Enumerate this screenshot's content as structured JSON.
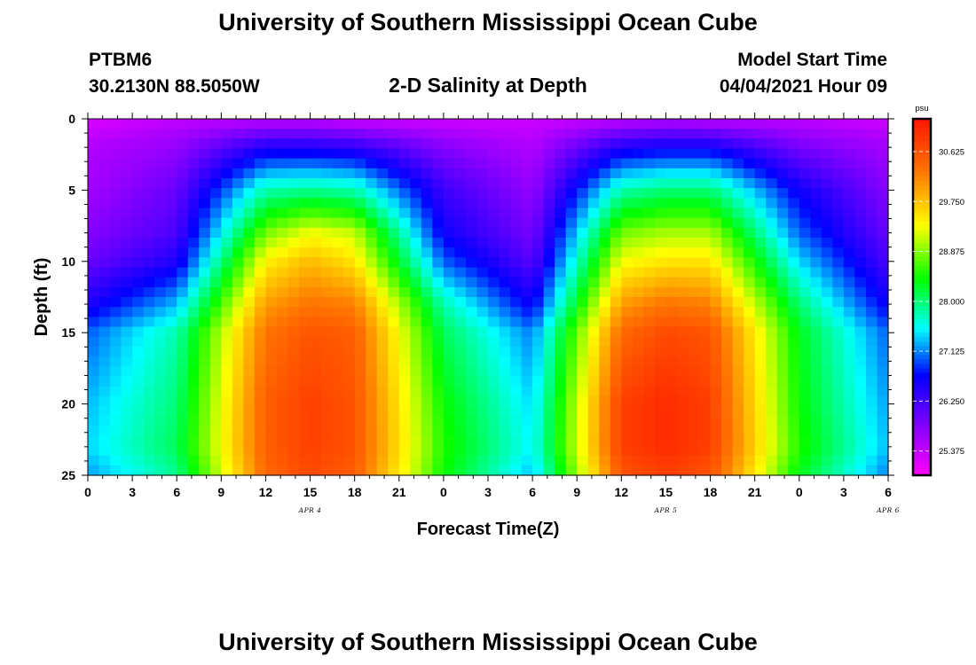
{
  "header": {
    "title_top": "University of Southern Mississippi Ocean Cube",
    "title_bottom": "University of Southern Mississippi Ocean Cube",
    "station_id": "PTBM6",
    "station_coords": "30.2130N  88.5050W",
    "plot_title": "2-D Salinity at Depth",
    "model_start_label": "Model Start Time",
    "model_start_value": "04/04/2021 Hour 09"
  },
  "chart_data": {
    "type": "heatmap",
    "title": "2-D Salinity at Depth",
    "xlabel": "Forecast Time(Z)",
    "ylabel": "Depth (ft)",
    "x_tick_labels": [
      "0",
      "3",
      "6",
      "9",
      "12",
      "15",
      "18",
      "21",
      "0",
      "3",
      "6",
      "9",
      "12",
      "15",
      "18",
      "21",
      "0",
      "3",
      "6"
    ],
    "day_labels": [
      {
        "label": "APR 4",
        "hour": 15
      },
      {
        "label": "APR 5",
        "hour": 39
      },
      {
        "label": "APR 6",
        "hour": 54
      }
    ],
    "xlim": [
      0,
      54
    ],
    "y_ticks": [
      0,
      5,
      10,
      15,
      20,
      25
    ],
    "ylim": [
      0,
      25
    ],
    "y_inverted": true,
    "colorbar": {
      "unit": "psu",
      "ticks": [
        "30.625",
        "29.750",
        "28.875",
        "28.000",
        "27.125",
        "26.250",
        "25.375"
      ],
      "range": [
        24.95,
        31.2
      ]
    },
    "salinity_grid": {
      "hours": [
        0,
        6,
        12,
        15,
        18,
        24,
        30,
        36,
        39,
        42,
        48,
        54
      ],
      "depths": [
        0,
        2,
        5,
        8,
        10,
        13,
        15,
        20,
        23,
        25
      ],
      "values_psu": [
        [
          25.2,
          25.4,
          25.4,
          25.4,
          25.3,
          25.3,
          25.3,
          25.4,
          25.5,
          25.4,
          25.4,
          25.3
        ],
        [
          25.5,
          25.7,
          26.5,
          26.5,
          26.4,
          25.8,
          25.5,
          26.5,
          26.6,
          26.6,
          25.9,
          25.6
        ],
        [
          25.6,
          26.0,
          27.8,
          27.9,
          27.8,
          26.3,
          25.7,
          27.8,
          28.0,
          28.0,
          26.6,
          25.8
        ],
        [
          25.8,
          26.2,
          28.8,
          29.3,
          29.1,
          26.6,
          25.9,
          28.8,
          29.0,
          29.0,
          27.0,
          26.0
        ],
        [
          26.0,
          26.5,
          29.4,
          29.8,
          29.5,
          27.0,
          26.1,
          29.3,
          29.5,
          29.5,
          27.4,
          26.2
        ],
        [
          26.5,
          27.3,
          30.0,
          30.3,
          30.2,
          27.8,
          26.6,
          30.0,
          30.3,
          30.2,
          28.0,
          26.6
        ],
        [
          27.0,
          27.8,
          30.3,
          30.6,
          30.5,
          28.1,
          27.1,
          30.4,
          30.7,
          30.6,
          28.3,
          27.0
        ],
        [
          27.3,
          28.0,
          30.5,
          30.8,
          30.6,
          28.4,
          27.4,
          30.8,
          31.0,
          30.8,
          28.4,
          27.2
        ],
        [
          27.4,
          28.1,
          30.5,
          30.8,
          30.6,
          28.5,
          27.5,
          30.8,
          31.0,
          30.8,
          28.5,
          27.3
        ],
        [
          27.2,
          27.9,
          30.4,
          30.7,
          30.5,
          28.4,
          27.3,
          30.6,
          30.8,
          30.6,
          28.3,
          27.1
        ]
      ]
    }
  }
}
